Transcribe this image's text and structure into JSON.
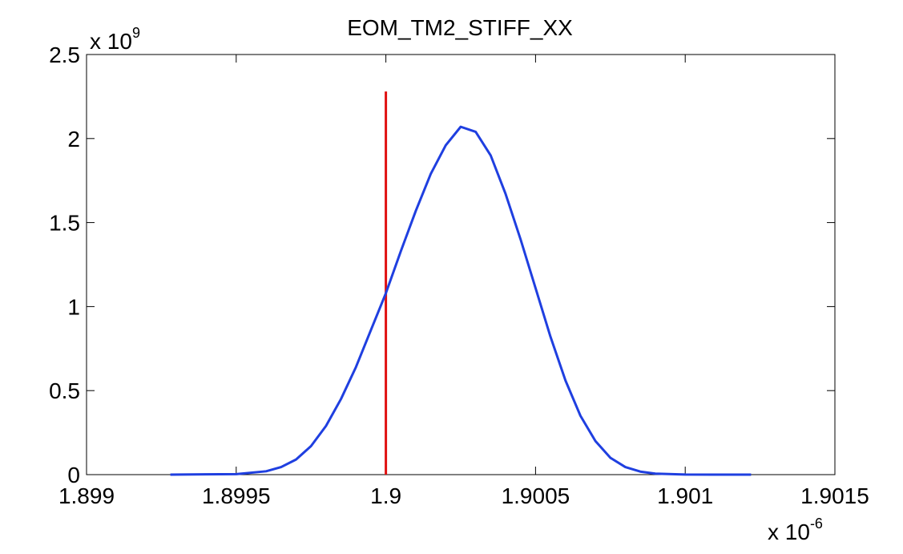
{
  "chart_data": {
    "type": "line",
    "title": "EOM_TM2_STIFF_XX",
    "xlabel": "",
    "ylabel": "",
    "x_multiplier_label": {
      "base": "x 10",
      "exponent": "-6"
    },
    "y_multiplier_label": {
      "base": "x 10",
      "exponent": "9"
    },
    "xlim": [
      1.899,
      1.9015
    ],
    "ylim": [
      0,
      2.5
    ],
    "x_ticks": [
      "1.899",
      "1.8995",
      "1.9",
      "1.9005",
      "1.901",
      "1.9015"
    ],
    "y_ticks": [
      "0",
      "0.5",
      "1",
      "1.5",
      "2",
      "2.5"
    ],
    "x_tick_values": [
      1.899,
      1.8995,
      1.9,
      1.9005,
      1.901,
      1.9015
    ],
    "y_tick_values": [
      0,
      0.5,
      1,
      1.5,
      2,
      2.5
    ],
    "grid": false,
    "series": [
      {
        "color": "#1f3fe0",
        "x": [
          1.89928,
          1.8995,
          1.8996,
          1.89965,
          1.8997,
          1.89975,
          1.8998,
          1.89985,
          1.8999,
          1.89995,
          1.9,
          1.90005,
          1.9001,
          1.90015,
          1.9002,
          1.90025,
          1.9003,
          1.90035,
          1.9004,
          1.90045,
          1.9005,
          1.90055,
          1.9006,
          1.90065,
          1.9007,
          1.90075,
          1.9008,
          1.90085,
          1.9009,
          1.901,
          1.90122
        ],
        "y": [
          0.0,
          0.003,
          0.02,
          0.045,
          0.09,
          0.17,
          0.29,
          0.45,
          0.64,
          0.86,
          1.08,
          1.33,
          1.57,
          1.79,
          1.96,
          2.07,
          2.04,
          1.9,
          1.67,
          1.4,
          1.11,
          0.82,
          0.56,
          0.35,
          0.2,
          0.1,
          0.045,
          0.018,
          0.006,
          0.0005,
          0.0
        ]
      }
    ],
    "reference_line": {
      "x": 1.9,
      "y_top": 2.28,
      "color": "#e01010"
    }
  }
}
